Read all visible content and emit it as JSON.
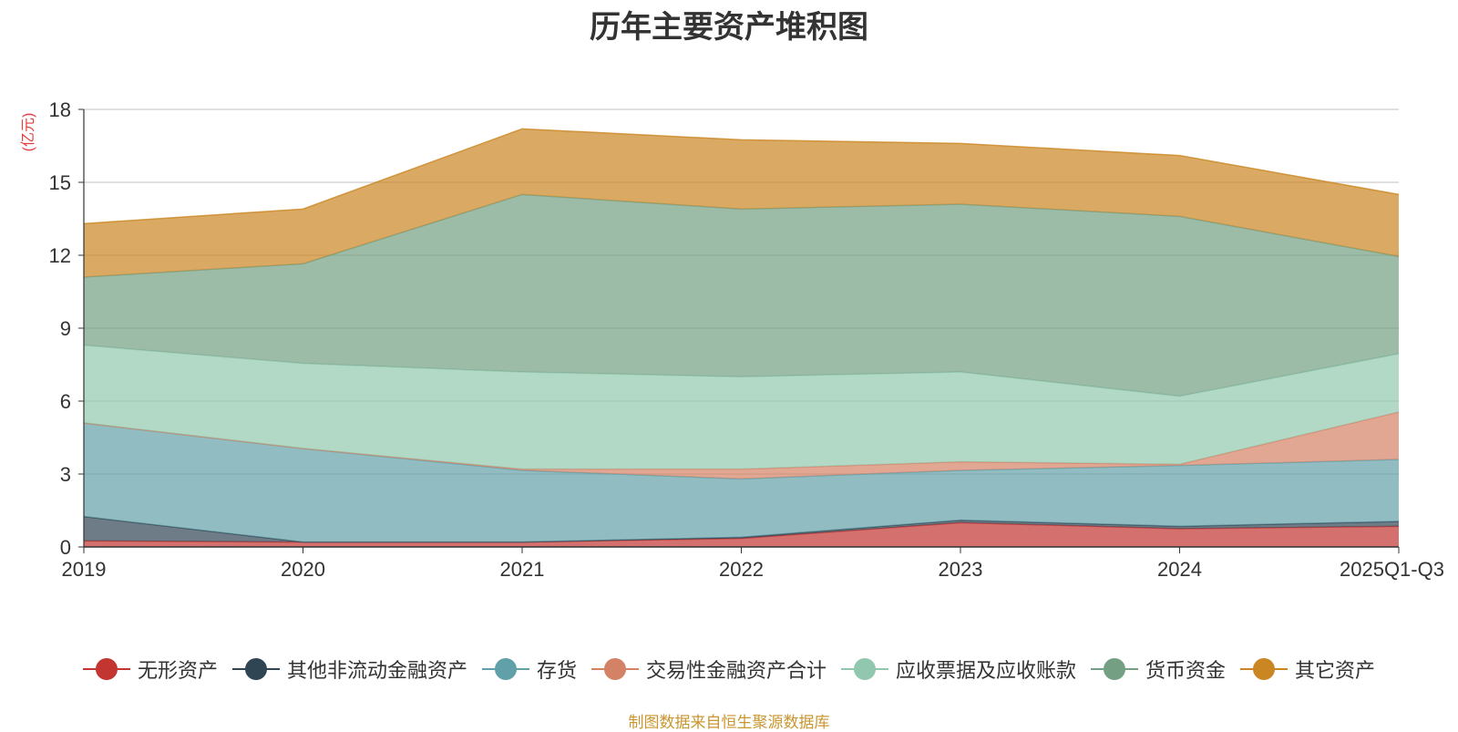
{
  "chart_data": {
    "type": "area",
    "stacked": true,
    "title": "历年主要资产堆积图",
    "ylabel": "(亿元)",
    "xlabel": "",
    "categories": [
      "2019",
      "2020",
      "2021",
      "2022",
      "2023",
      "2024",
      "2025Q1-Q3"
    ],
    "ylim": [
      0,
      18
    ],
    "yticks": [
      "0",
      "3",
      "6",
      "9",
      "12",
      "15",
      "18"
    ],
    "grid": true,
    "legend_position": "bottom",
    "series": [
      {
        "name": "无形资产",
        "color": "#c23531",
        "values": [
          0.25,
          0.2,
          0.2,
          0.35,
          1.0,
          0.75,
          0.85
        ]
      },
      {
        "name": "其他非流动金融资产",
        "color": "#2f4554",
        "values": [
          1.0,
          0.0,
          0.0,
          0.05,
          0.1,
          0.1,
          0.2
        ]
      },
      {
        "name": "存货",
        "color": "#61a0a8",
        "values": [
          3.85,
          3.85,
          2.95,
          2.4,
          2.05,
          2.5,
          2.55
        ]
      },
      {
        "name": "交易性金融资产合计",
        "color": "#d48265",
        "values": [
          0.0,
          0.0,
          0.05,
          0.4,
          0.35,
          0.05,
          1.95
        ]
      },
      {
        "name": "应收票据及应收账款",
        "color": "#91c7ae",
        "values": [
          3.2,
          3.5,
          4.0,
          3.8,
          3.7,
          2.8,
          2.4
        ]
      },
      {
        "name": "货币资金",
        "color": "#749f83",
        "values": [
          2.8,
          4.1,
          7.3,
          6.9,
          6.9,
          7.4,
          4.0
        ]
      },
      {
        "name": "其它资产",
        "color": "#ca8622",
        "values": [
          2.2,
          2.25,
          2.7,
          2.85,
          2.5,
          2.5,
          2.55
        ]
      }
    ]
  },
  "source_note": "制图数据来自恒生聚源数据库"
}
